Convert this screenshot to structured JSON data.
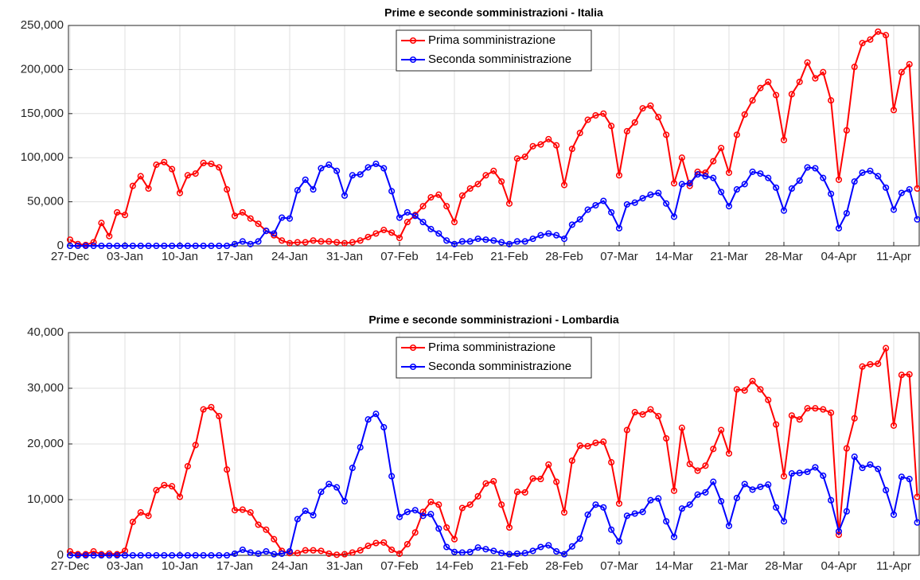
{
  "chart_data": [
    {
      "type": "line",
      "title": "Prime e seconde somministrazioni - Italia",
      "categories": [
        "27-Dec",
        null,
        null,
        null,
        null,
        null,
        null,
        "03-Jan",
        null,
        null,
        null,
        null,
        null,
        null,
        "10-Jan",
        null,
        null,
        null,
        null,
        null,
        null,
        "17-Jan",
        null,
        null,
        null,
        null,
        null,
        null,
        "24-Jan",
        null,
        null,
        null,
        null,
        null,
        null,
        "31-Jan",
        null,
        null,
        null,
        null,
        null,
        null,
        "07-Feb",
        null,
        null,
        null,
        null,
        null,
        null,
        "14-Feb",
        null,
        null,
        null,
        null,
        null,
        null,
        "21-Feb",
        null,
        null,
        null,
        null,
        null,
        null,
        "28-Feb",
        null,
        null,
        null,
        null,
        null,
        null,
        "07-Mar",
        null,
        null,
        null,
        null,
        null,
        null,
        "14-Mar",
        null,
        null,
        null,
        null,
        null,
        null,
        "21-Mar",
        null,
        null,
        null,
        null,
        null,
        null,
        "28-Mar",
        null,
        null,
        null,
        null,
        null,
        null,
        "04-Apr",
        null,
        null,
        null,
        null,
        null,
        null,
        "11-Apr",
        null,
        null,
        null
      ],
      "series": [
        {
          "name": "Prima somministrazione",
          "color": "#ff0000",
          "values": [
            7000,
            2000,
            1000,
            4000,
            26000,
            11000,
            38000,
            35000,
            68000,
            79000,
            65000,
            92000,
            95000,
            87000,
            60000,
            80000,
            82000,
            94000,
            93000,
            89000,
            64000,
            34000,
            38000,
            31000,
            25000,
            17000,
            12000,
            6000,
            3000,
            4000,
            4000,
            6000,
            5000,
            5000,
            4000,
            3000,
            4000,
            6000,
            10000,
            14000,
            18000,
            15000,
            9000,
            27000,
            35000,
            45000,
            55000,
            58000,
            45000,
            27000,
            57000,
            65000,
            70000,
            80000,
            85000,
            73000,
            48000,
            99000,
            101000,
            113000,
            115000,
            121000,
            114000,
            69000,
            110000,
            128000,
            143000,
            148000,
            150000,
            136000,
            80000,
            130000,
            140000,
            156000,
            159000,
            146000,
            126000,
            71000,
            100000,
            68000,
            84000,
            83000,
            96000,
            111000,
            83000,
            126000,
            149000,
            165000,
            179000,
            186000,
            171000,
            120000,
            172000,
            186000,
            208000,
            190000,
            197000,
            165000,
            75000,
            131000,
            203000,
            230000,
            234000,
            243000,
            239000,
            154000,
            197000,
            206000,
            65000
          ]
        },
        {
          "name": "Seconda somministrazione",
          "color": "#0000ff",
          "values": [
            0,
            0,
            0,
            0,
            0,
            0,
            0,
            0,
            0,
            0,
            0,
            0,
            0,
            0,
            0,
            0,
            0,
            0,
            0,
            0,
            0,
            2000,
            5000,
            2000,
            5000,
            17000,
            14000,
            32000,
            31000,
            63000,
            75000,
            64000,
            88000,
            92000,
            85000,
            57000,
            80000,
            81000,
            89000,
            93000,
            88000,
            62000,
            32000,
            38000,
            34000,
            27000,
            19000,
            14000,
            6000,
            2000,
            5000,
            5000,
            8000,
            7000,
            6000,
            4000,
            2000,
            5000,
            5000,
            8000,
            12000,
            14000,
            12000,
            8000,
            24000,
            30000,
            41000,
            46000,
            51000,
            38000,
            20000,
            47000,
            49000,
            54000,
            58000,
            60000,
            48000,
            33000,
            70000,
            71000,
            81000,
            79000,
            77000,
            61000,
            45000,
            64000,
            70000,
            84000,
            82000,
            77000,
            66000,
            40000,
            65000,
            74000,
            89000,
            88000,
            77000,
            59000,
            20000,
            37000,
            73000,
            83000,
            85000,
            79000,
            66000,
            41000,
            60000,
            64000,
            30000
          ]
        }
      ],
      "ylim": [
        0,
        250000
      ],
      "yticks": [
        0,
        {
          "value": 50000,
          "label": "50,000"
        },
        {
          "value": 100000,
          "label": "100,000"
        },
        {
          "value": 150000,
          "label": "150,000"
        },
        {
          "value": 200000,
          "label": "200,000"
        },
        {
          "value": 250000,
          "label": "250,000"
        }
      ],
      "grid": true,
      "legend": "north"
    },
    {
      "type": "line",
      "title": "Prime e seconde somministrazioni - Lombardia",
      "categories": [
        "27-Dec",
        null,
        null,
        null,
        null,
        null,
        null,
        "03-Jan",
        null,
        null,
        null,
        null,
        null,
        null,
        "10-Jan",
        null,
        null,
        null,
        null,
        null,
        null,
        "17-Jan",
        null,
        null,
        null,
        null,
        null,
        null,
        "24-Jan",
        null,
        null,
        null,
        null,
        null,
        null,
        "31-Jan",
        null,
        null,
        null,
        null,
        null,
        null,
        "07-Feb",
        null,
        null,
        null,
        null,
        null,
        null,
        "14-Feb",
        null,
        null,
        null,
        null,
        null,
        null,
        "21-Feb",
        null,
        null,
        null,
        null,
        null,
        null,
        "28-Feb",
        null,
        null,
        null,
        null,
        null,
        null,
        "07-Mar",
        null,
        null,
        null,
        null,
        null,
        null,
        "14-Mar",
        null,
        null,
        null,
        null,
        null,
        null,
        "21-Mar",
        null,
        null,
        null,
        null,
        null,
        null,
        "28-Mar",
        null,
        null,
        null,
        null,
        null,
        null,
        "04-Apr",
        null,
        null,
        null,
        null,
        null,
        null,
        "11-Apr",
        null,
        null,
        null
      ],
      "series": [
        {
          "name": "Prima somministrazione",
          "color": "#ff0000",
          "values": [
            700,
            200,
            200,
            700,
            200,
            300,
            200,
            800,
            6000,
            7700,
            7100,
            11700,
            12600,
            12400,
            10500,
            16000,
            19800,
            26200,
            26600,
            25000,
            15400,
            8100,
            8200,
            7700,
            5500,
            4600,
            2900,
            800,
            400,
            400,
            900,
            900,
            800,
            300,
            100,
            200,
            500,
            900,
            1700,
            2200,
            2300,
            1000,
            300,
            2000,
            4100,
            7800,
            9600,
            9100,
            5000,
            2900,
            8500,
            9100,
            10600,
            12900,
            13300,
            9100,
            5000,
            11400,
            11300,
            13800,
            13700,
            16300,
            13200,
            7700,
            17000,
            19700,
            19600,
            20200,
            20400,
            16700,
            9300,
            22500,
            25700,
            25300,
            26200,
            25000,
            21000,
            11600,
            22900,
            16400,
            15200,
            16100,
            19100,
            22500,
            18300,
            29800,
            29600,
            31300,
            29800,
            27900,
            23500,
            14200,
            25100,
            24400,
            26400,
            26400,
            26200,
            25600,
            3700,
            19200,
            24600,
            33900,
            34300,
            34400,
            37200,
            23300,
            32400,
            32500,
            10500
          ]
        },
        {
          "name": "Seconda somministrazione",
          "color": "#0000ff",
          "values": [
            0,
            0,
            0,
            0,
            0,
            0,
            0,
            0,
            0,
            0,
            0,
            0,
            0,
            0,
            0,
            0,
            0,
            0,
            0,
            0,
            0,
            300,
            1000,
            500,
            300,
            700,
            200,
            300,
            700,
            6500,
            8000,
            7200,
            11400,
            12800,
            12200,
            9700,
            15700,
            19400,
            24400,
            25400,
            23000,
            14200,
            6900,
            7800,
            8100,
            7100,
            7400,
            4800,
            1500,
            600,
            500,
            600,
            1400,
            1100,
            800,
            400,
            200,
            300,
            400,
            800,
            1500,
            1800,
            700,
            200,
            1600,
            3000,
            7300,
            9100,
            8600,
            4600,
            2500,
            7100,
            7500,
            7800,
            9900,
            10200,
            6100,
            3300,
            8400,
            9100,
            10900,
            11300,
            13200,
            9700,
            5300,
            10300,
            12800,
            11800,
            12300,
            12700,
            8600,
            6100,
            14700,
            14800,
            15000,
            15800,
            14300,
            9900,
            4300,
            7900,
            17700,
            15700,
            16300,
            15500,
            11700,
            7300,
            14100,
            13700,
            5900
          ]
        }
      ],
      "ylim": [
        0,
        40000
      ],
      "yticks": [
        0,
        {
          "value": 10000,
          "label": "10,000"
        },
        {
          "value": 20000,
          "label": "20,000"
        },
        {
          "value": 30000,
          "label": "30,000"
        },
        {
          "value": 40000,
          "label": "40,000"
        }
      ],
      "grid": true,
      "legend": "north"
    }
  ]
}
